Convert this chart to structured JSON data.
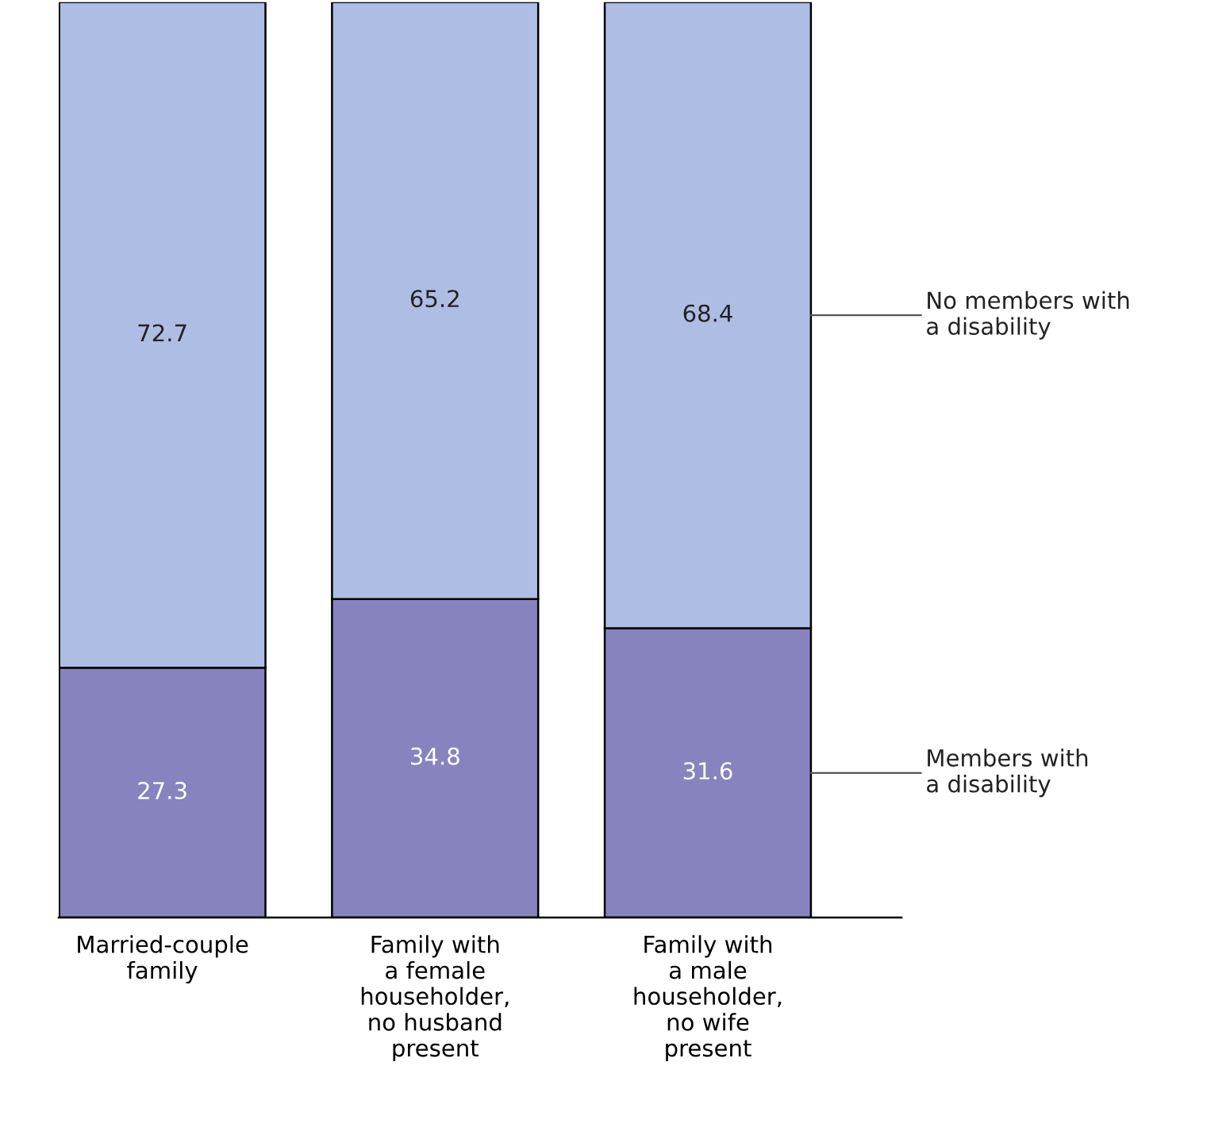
{
  "chart_data": {
    "type": "bar",
    "stacked": true,
    "data_labels": true,
    "legend": false,
    "grid": false,
    "categories": [
      "Married-couple\nfamily",
      "Family with\na female\nhouseholder,\nno husband\npresent",
      "Family with\na male\nhouseholder,\nno wife\npresent"
    ],
    "series": [
      {
        "name": "Members with\na disability",
        "color": "#8783be",
        "values": [
          27.3,
          34.8,
          31.6
        ]
      },
      {
        "name": "No members with\na disability",
        "color": "#aebde3",
        "values": [
          72.7,
          65.2,
          68.4
        ]
      }
    ]
  }
}
